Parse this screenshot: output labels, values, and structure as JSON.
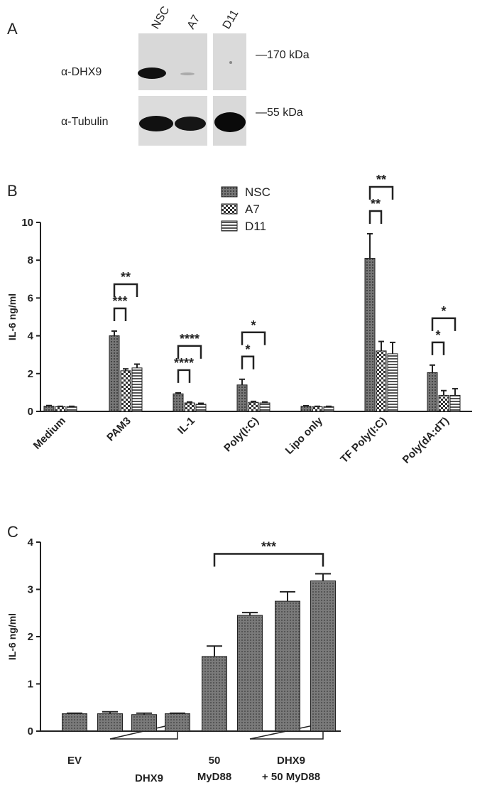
{
  "panel_labels": [
    "A",
    "B",
    "C"
  ],
  "blot": {
    "lanes": [
      "NSC",
      "A7",
      "D11"
    ],
    "antibodies": [
      "α-DHX9",
      "α-Tubulin"
    ],
    "markers": [
      "—170 kDa",
      "—55 kDa"
    ]
  },
  "chart_data": [
    {
      "type": "bar",
      "ylabel": "IL-6 ng/ml",
      "categories": [
        "Medium",
        "PAM3",
        "IL-1",
        "Poly(I:C)",
        "Lipo only",
        "TF Poly(I:C)",
        "Poly(dA:dT)"
      ],
      "series": [
        {
          "name": "NSC",
          "color": "#6b6b6b",
          "values": [
            0.28,
            4.0,
            0.93,
            1.4,
            0.27,
            8.1,
            2.05
          ],
          "errors": [
            0.03,
            0.25,
            0.05,
            0.3,
            0.03,
            1.3,
            0.4
          ]
        },
        {
          "name": "A7",
          "color": "#8a8a8a",
          "values": [
            0.25,
            2.15,
            0.45,
            0.48,
            0.25,
            3.2,
            0.85
          ],
          "errors": [
            0.02,
            0.1,
            0.05,
            0.05,
            0.02,
            0.5,
            0.25
          ]
        },
        {
          "name": "D11",
          "color": "#a0a0a0",
          "values": [
            0.25,
            2.3,
            0.38,
            0.45,
            0.25,
            3.05,
            0.85
          ],
          "errors": [
            0.02,
            0.2,
            0.05,
            0.05,
            0.02,
            0.6,
            0.35
          ]
        }
      ],
      "ylim": [
        0,
        10
      ],
      "yticks": [
        0,
        2,
        4,
        6,
        8,
        10
      ],
      "legend": "top-center",
      "annotations": [
        {
          "category": "PAM3",
          "pair": [
            "NSC",
            "A7"
          ],
          "text": "***"
        },
        {
          "category": "PAM3",
          "pair": [
            "NSC",
            "D11"
          ],
          "text": "**"
        },
        {
          "category": "IL-1",
          "pair": [
            "NSC",
            "A7"
          ],
          "text": "****"
        },
        {
          "category": "IL-1",
          "pair": [
            "NSC",
            "D11"
          ],
          "text": "****"
        },
        {
          "category": "Poly(I:C)",
          "pair": [
            "NSC",
            "A7"
          ],
          "text": "*"
        },
        {
          "category": "Poly(I:C)",
          "pair": [
            "NSC",
            "D11"
          ],
          "text": "*"
        },
        {
          "category": "TF Poly(I:C)",
          "pair": [
            "NSC",
            "A7"
          ],
          "text": "**"
        },
        {
          "category": "TF Poly(I:C)",
          "pair": [
            "NSC",
            "D11"
          ],
          "text": "**"
        },
        {
          "category": "Poly(dA:dT)",
          "pair": [
            "NSC",
            "A7"
          ],
          "text": "*"
        },
        {
          "category": "Poly(dA:dT)",
          "pair": [
            "NSC",
            "D11"
          ],
          "text": "*"
        }
      ]
    },
    {
      "type": "bar",
      "ylabel": "IL-6 ng/ml",
      "color": "#6b6b6b",
      "values": [
        0.37,
        0.37,
        0.35,
        0.37,
        1.58,
        2.45,
        2.75,
        3.18
      ],
      "errors": [
        0.01,
        0.04,
        0.03,
        0.01,
        0.22,
        0.06,
        0.2,
        0.15
      ],
      "ylim": [
        0,
        4
      ],
      "yticks": [
        0,
        1,
        2,
        3,
        4
      ],
      "x_labels": [
        [
          "EV"
        ],
        [
          "DHX9"
        ],
        [
          "50",
          "MyD88"
        ],
        [
          "DHX9",
          "+ 50 MyD88"
        ]
      ],
      "annotations": [
        {
          "pair": [
            4,
            7
          ],
          "text": "***"
        }
      ]
    }
  ]
}
